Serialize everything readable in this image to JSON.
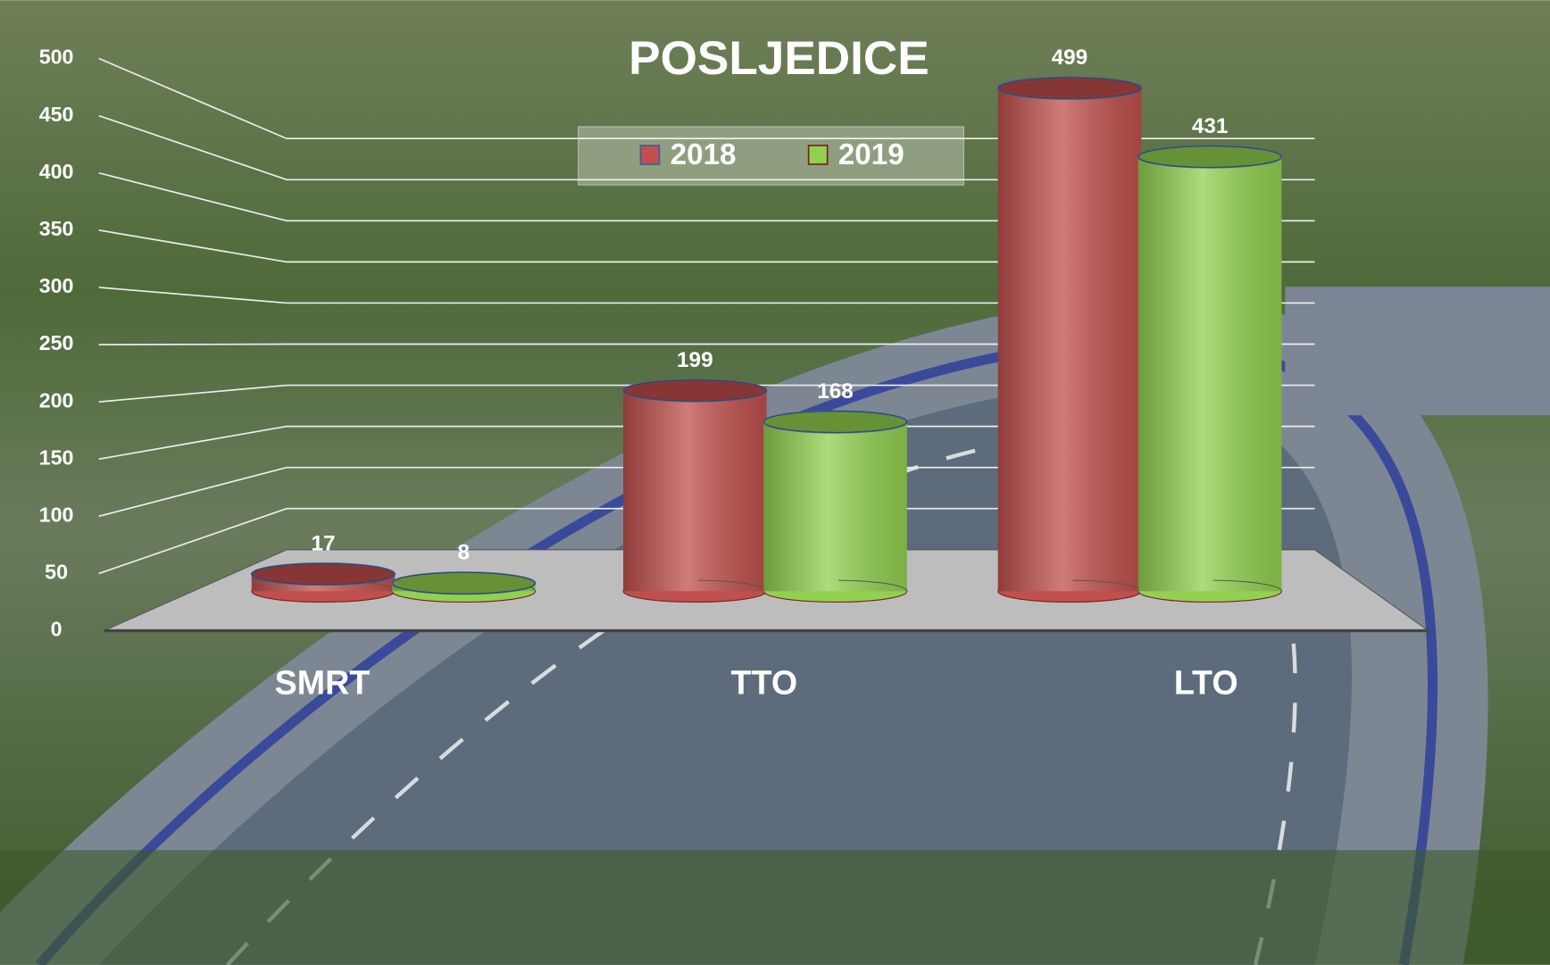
{
  "chart_data": {
    "type": "bar",
    "title": "POSLJEDICE",
    "categories": [
      "SMRT",
      "TTO",
      "LTO"
    ],
    "series": [
      {
        "name": "2018",
        "color": "#c0504d",
        "values": [
          17,
          199,
          499
        ]
      },
      {
        "name": "2019",
        "color": "#92d050",
        "values": [
          8,
          168,
          431
        ]
      }
    ],
    "ylim": [
      0,
      500
    ],
    "yticks": [
      0,
      50,
      100,
      150,
      200,
      250,
      300,
      350,
      400,
      450,
      500
    ],
    "grid": true,
    "legend": "top"
  }
}
